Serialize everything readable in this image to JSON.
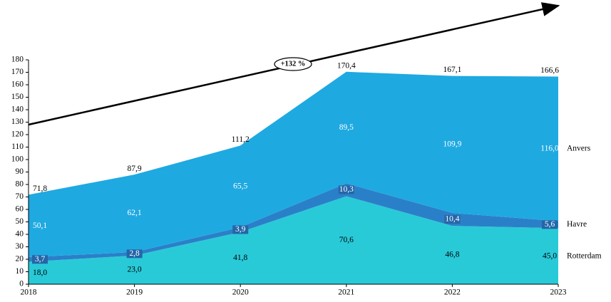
{
  "chart_data": {
    "type": "stacked_area",
    "categories": [
      "2018",
      "2019",
      "2020",
      "2021",
      "2022",
      "2023"
    ],
    "series": [
      {
        "name": "Rotterdam",
        "color": "#29cad8",
        "label_color": "#000000",
        "values": [
          18.0,
          23.0,
          41.8,
          70.6,
          46.8,
          45.0
        ],
        "value_labels": [
          "18,0",
          "23,0",
          "41,8",
          "70,6",
          "46,8",
          "45,0"
        ]
      },
      {
        "name": "Havre",
        "color": "#2a80c8",
        "label_color": "#ffffff",
        "values": [
          3.7,
          2.8,
          3.9,
          10.3,
          10.4,
          5.6
        ],
        "value_labels": [
          "3,7",
          "2,8",
          "3,9",
          "10,3",
          "10,4",
          "5,6"
        ]
      },
      {
        "name": "Anvers",
        "color": "#1fa9e1",
        "label_color": "#ffffff",
        "values": [
          50.1,
          62.1,
          65.5,
          89.5,
          109.9,
          116.0
        ],
        "value_labels": [
          "50,1",
          "62,1",
          "65,5",
          "89,5",
          "109,9",
          "116,0"
        ]
      }
    ],
    "totals": {
      "values": [
        71.8,
        87.9,
        111.2,
        170.4,
        167.1,
        166.6
      ],
      "value_labels": [
        "71,8",
        "87,9",
        "111,2",
        "170,4",
        "167,1",
        "166,6"
      ]
    },
    "annotation": "+132 %",
    "ylim": [
      0,
      180
    ],
    "yticks": [
      0,
      10,
      20,
      30,
      40,
      50,
      60,
      70,
      80,
      90,
      100,
      110,
      120,
      130,
      140,
      150,
      160,
      170,
      180
    ]
  }
}
